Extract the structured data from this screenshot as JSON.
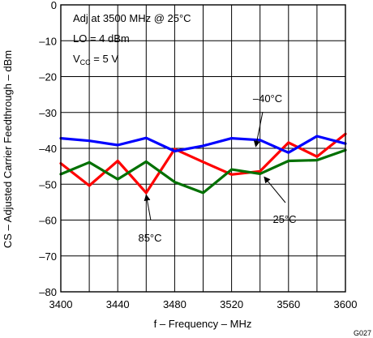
{
  "figure_id": "G027",
  "conditions": {
    "line1": "Adj at 3500 MHz @ 25°C",
    "line2": "LO = 4 dBm",
    "line3_prefix": "V",
    "line3_sub": "CC",
    "line3_suffix": " =  5 V"
  },
  "chart_data": {
    "type": "line",
    "xlabel": "f – Frequency – MHz",
    "ylabel": "CS – Adjusted Carrier Feedthrough – dBm",
    "xlim": [
      3400,
      3600
    ],
    "ylim": [
      -80,
      0
    ],
    "xticks": [
      3400,
      3440,
      3480,
      3520,
      3560,
      3600
    ],
    "xtick_labels": [
      "3400",
      "3440",
      "3480",
      "3520",
      "3560",
      "3600"
    ],
    "yticks": [
      0,
      -10,
      -20,
      -30,
      -40,
      -50,
      -60,
      -70,
      -80
    ],
    "ytick_labels": [
      "0",
      "–10",
      "–20",
      "–30",
      "–40",
      "–50",
      "–60",
      "–70",
      "–80"
    ],
    "grid": true,
    "series": [
      {
        "name": "–40°C",
        "color": "#0000ff",
        "x": [
          3400,
          3420,
          3440,
          3460,
          3480,
          3500,
          3520,
          3540,
          3560,
          3580,
          3600
        ],
        "values": [
          -37.2,
          -37.9,
          -39.1,
          -37.1,
          -40.8,
          -39.3,
          -37.2,
          -37.7,
          -41.2,
          -36.6,
          -38.7
        ]
      },
      {
        "name": "85°C",
        "color": "#ff0000",
        "x": [
          3400,
          3420,
          3440,
          3460,
          3480,
          3500,
          3520,
          3540,
          3560,
          3580,
          3600
        ],
        "values": [
          -44.2,
          -50.4,
          -43.5,
          -52.4,
          -40.2,
          -43.8,
          -47.3,
          -46.4,
          -38.4,
          -42.3,
          -36.0
        ]
      },
      {
        "name": "25°C",
        "color": "#007000",
        "x": [
          3400,
          3420,
          3440,
          3460,
          3480,
          3500,
          3520,
          3540,
          3560,
          3580,
          3600
        ],
        "values": [
          -47.2,
          -43.9,
          -48.6,
          -43.7,
          -49.4,
          -52.4,
          -45.9,
          -47.1,
          -43.5,
          -43.3,
          -40.5
        ]
      }
    ],
    "annotations": [
      {
        "text": "–40°C",
        "series": 0,
        "point_x": 3537,
        "point_y": -39.5
      },
      {
        "text": "85°C",
        "series": 1,
        "point_x": 3460,
        "point_y": -53.0
      },
      {
        "text": "25°C",
        "series": 2,
        "point_x": 3543,
        "point_y": -48.0
      }
    ]
  }
}
